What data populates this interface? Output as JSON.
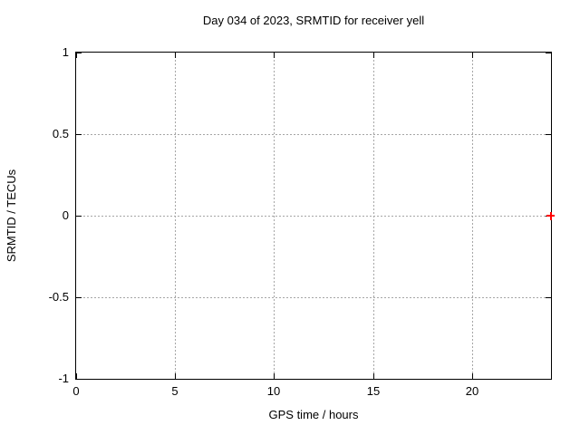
{
  "chart_data": {
    "type": "scatter",
    "title": "Day 034 of 2023, SRMTID for receiver yell",
    "xlabel": "GPS time / hours",
    "ylabel": "SRMTID / TECUs",
    "xlim": [
      0,
      24
    ],
    "ylim": [
      -1,
      1
    ],
    "xticks": [
      0,
      5,
      10,
      15,
      20
    ],
    "yticks": [
      -1,
      -0.5,
      0,
      0.5,
      1
    ],
    "grid": true,
    "legend": "none",
    "series": [
      {
        "name": "SRMTID",
        "marker": "plus",
        "color": "#ff0000",
        "points": [
          {
            "x": 24,
            "y": 0
          }
        ]
      }
    ]
  },
  "colors": {
    "background": "#ffffff",
    "axis": "#000000",
    "grid": "#a6a6a6",
    "text": "#000000",
    "point": "#ff0000"
  }
}
